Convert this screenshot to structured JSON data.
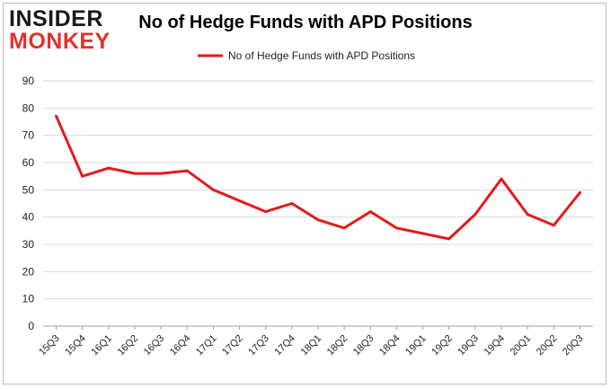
{
  "logo": {
    "line1": "INSIDER",
    "line2": "MONKEY"
  },
  "chart_data": {
    "type": "line",
    "title": "No of Hedge Funds with APD Positions",
    "xlabel": "",
    "ylabel": "",
    "categories": [
      "15Q3",
      "15Q4",
      "16Q1",
      "16Q2",
      "16Q3",
      "16Q4",
      "17Q1",
      "17Q2",
      "17Q3",
      "17Q4",
      "18Q1",
      "18Q2",
      "18Q3",
      "18Q4",
      "19Q1",
      "19Q2",
      "19Q3",
      "19Q4",
      "20Q1",
      "20Q2",
      "20Q3"
    ],
    "series": [
      {
        "name": "No of Hedge Funds with APD Positions",
        "color": "#e31a1c",
        "values": [
          77,
          55,
          58,
          56,
          56,
          57,
          50,
          46,
          42,
          45,
          39,
          36,
          42,
          36,
          34,
          32,
          41,
          54,
          41,
          37,
          49
        ]
      }
    ],
    "ylim": [
      0,
      90
    ],
    "yticks": [
      0,
      10,
      20,
      30,
      40,
      50,
      60,
      70,
      80,
      90
    ],
    "grid": "horizontal",
    "legend": "top-center"
  }
}
